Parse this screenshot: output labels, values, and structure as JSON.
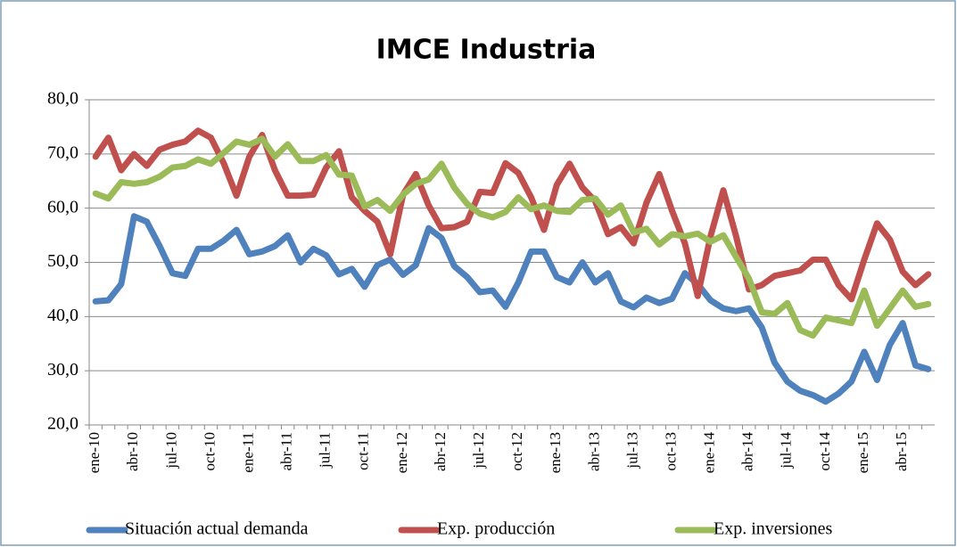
{
  "chart_data": {
    "type": "line",
    "title": "IMCE Industria",
    "categories": [
      "ene-10",
      null,
      null,
      "abr-10",
      null,
      null,
      "jul-10",
      null,
      null,
      "oct-10",
      null,
      null,
      "ene-11",
      null,
      null,
      "abr-11",
      null,
      null,
      "jul-11",
      null,
      null,
      "oct-11",
      null,
      null,
      "ene-12",
      null,
      null,
      "abr-12",
      null,
      null,
      "jul-12",
      null,
      null,
      "oct-12",
      null,
      null,
      "ene-13",
      null,
      null,
      "abr-13",
      null,
      null,
      "jul-13",
      null,
      null,
      "oct-13",
      null,
      null,
      "ene-14",
      null,
      null,
      "abr-14",
      null,
      null,
      "jul-14",
      null,
      null,
      "oct-14",
      null,
      null,
      "ene-15",
      null,
      null,
      "abr-15",
      null,
      null
    ],
    "series": [
      {
        "name": "Situación actual demanda",
        "color": "#4f81bd",
        "values": [
          42.8,
          43,
          46,
          58.5,
          57.5,
          53,
          48,
          47.5,
          52.5,
          52.5,
          54,
          56,
          51.5,
          52,
          53,
          55,
          50,
          52.5,
          51.3,
          47.8,
          48.8,
          45.5,
          49.5,
          50.5,
          47.7,
          49.5,
          56.3,
          54.5,
          49.3,
          47.3,
          44.5,
          44.8,
          41.8,
          46.3,
          52,
          52,
          47.3,
          46.3,
          50,
          46.3,
          48,
          42.8,
          41.7,
          43.5,
          42.5,
          43.3,
          48,
          46,
          43,
          41.5,
          41,
          41.5,
          38,
          31.5,
          28,
          26.3,
          25.5,
          24.3,
          25.8,
          28,
          33.5,
          28.3,
          34.8,
          38.8,
          31,
          30.3
        ]
      },
      {
        "name": "Exp. producción",
        "color": "#c0504d",
        "values": [
          69.5,
          73,
          67,
          70,
          67.8,
          70.8,
          71.7,
          72.3,
          74.3,
          73,
          68.3,
          62.3,
          69.5,
          73.5,
          67,
          62.3,
          62.3,
          62.5,
          67.5,
          70.5,
          62,
          59.5,
          57.5,
          51.5,
          62.5,
          66.3,
          60.5,
          56.3,
          56.5,
          57.5,
          63,
          62.8,
          68.3,
          66.5,
          62,
          56,
          64.3,
          68.2,
          63.8,
          61.3,
          55.2,
          56.5,
          53.5,
          61,
          66.3,
          59.5,
          53.5,
          43.8,
          54.8,
          63.3,
          54.8,
          45,
          45.8,
          47.5,
          48,
          48.5,
          50.5,
          50.5,
          45.8,
          43.2,
          50.5,
          57.2,
          54.2,
          48.3,
          45.8,
          47.8
        ]
      },
      {
        "name": "Exp. inversiones",
        "color": "#9bbb59",
        "values": [
          62.7,
          61.8,
          64.8,
          64.5,
          64.8,
          65.8,
          67.5,
          67.8,
          69,
          68.2,
          70.2,
          72.3,
          71.7,
          72.8,
          69.5,
          71.8,
          68.7,
          68.7,
          69.8,
          66.2,
          66,
          60.3,
          61.5,
          59.5,
          62.5,
          64.5,
          65.3,
          68.2,
          63.8,
          60.8,
          59,
          58.3,
          59.3,
          62,
          59.8,
          60.5,
          59.5,
          59.3,
          61.5,
          61.8,
          58.8,
          60.5,
          55.5,
          56.2,
          53.3,
          55.2,
          54.8,
          55.3,
          53.8,
          55,
          51,
          47,
          40.8,
          40.5,
          42.5,
          37.5,
          36.5,
          39.8,
          39.3,
          38.8,
          44.8,
          38.3,
          41.5,
          44.8,
          41.8,
          42.3
        ]
      }
    ],
    "ylim": [
      20,
      80
    ],
    "yticks": [
      {
        "value": 20,
        "label": "20,0"
      },
      {
        "value": 30,
        "label": "30,0"
      },
      {
        "value": 40,
        "label": "40,0"
      },
      {
        "value": 50,
        "label": "50,0"
      },
      {
        "value": 60,
        "label": "60,0"
      },
      {
        "value": 70,
        "label": "70,0"
      },
      {
        "value": 80,
        "label": "80,0"
      }
    ],
    "grid": true,
    "legend": "bottom"
  }
}
